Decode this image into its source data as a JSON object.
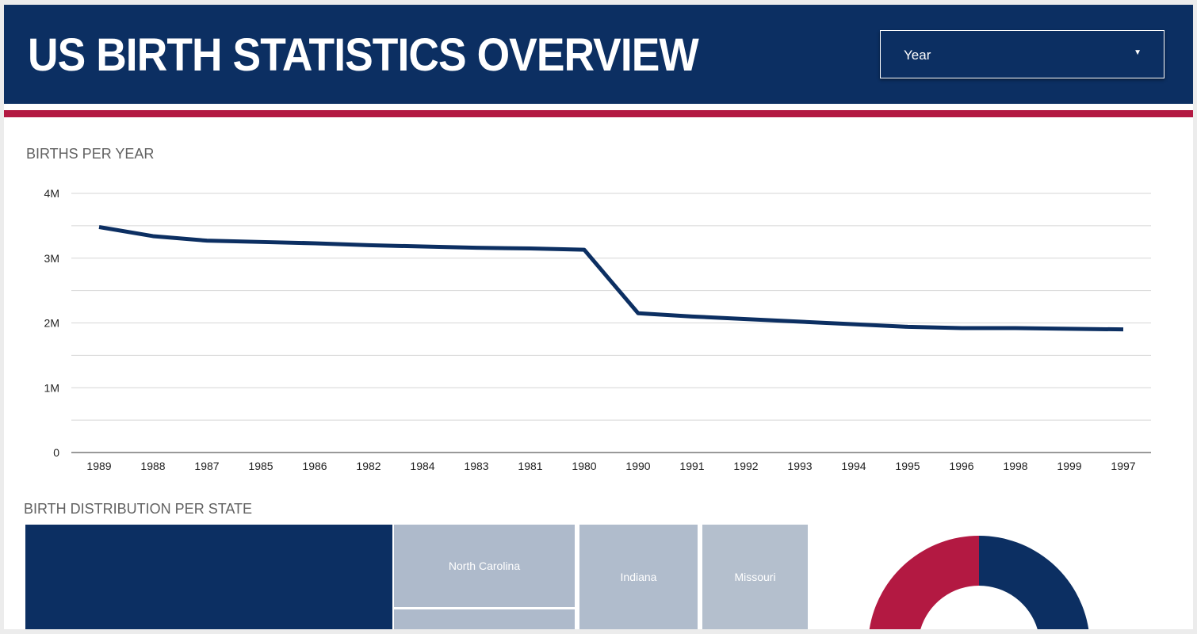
{
  "header": {
    "title": "US BIRTH STATISTICS OVERVIEW",
    "dropdown_label": "Year"
  },
  "births_section": {
    "title": "BIRTHS PER YEAR"
  },
  "distribution_section": {
    "title": "BIRTH DISTRIBUTION PER STATE"
  },
  "treemap": {
    "tiles": [
      {
        "label": ""
      },
      {
        "label": "North Carolina"
      },
      {
        "label": ""
      },
      {
        "label": "Indiana"
      },
      {
        "label": "Missouri"
      }
    ]
  },
  "donut": {
    "slices": [
      {
        "value": 0.7,
        "color": "#0c2f62"
      },
      {
        "value": 0.3,
        "color": "#b31942"
      }
    ]
  },
  "colors": {
    "navy": "#0c2f62",
    "red": "#b31942",
    "tile": "#aebacb"
  },
  "chart_data": {
    "type": "line",
    "title": "BIRTHS PER YEAR",
    "categories": [
      "1989",
      "1988",
      "1987",
      "1985",
      "1986",
      "1982",
      "1984",
      "1983",
      "1981",
      "1980",
      "1990",
      "1991",
      "1992",
      "1993",
      "1994",
      "1995",
      "1996",
      "1998",
      "1999",
      "1997"
    ],
    "values": [
      3480000,
      3340000,
      3270000,
      3250000,
      3230000,
      3200000,
      3180000,
      3160000,
      3150000,
      3130000,
      2150000,
      2100000,
      2060000,
      2020000,
      1980000,
      1940000,
      1920000,
      1920000,
      1910000,
      1900000
    ],
    "ylim": [
      0,
      4000000
    ],
    "yticks": [
      "0",
      "1M",
      "2M",
      "3M",
      "4M"
    ],
    "grid": true
  }
}
